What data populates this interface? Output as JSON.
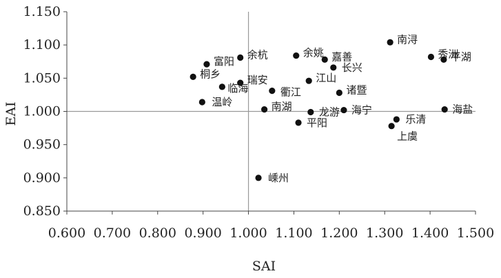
{
  "chart_data": {
    "type": "scatter",
    "xlabel": "SAI",
    "ylabel": "EAI",
    "xlim": [
      0.6,
      1.5
    ],
    "ylim": [
      0.85,
      1.15
    ],
    "xticks": [
      "0.600",
      "0.700",
      "0.800",
      "0.900",
      "1.000",
      "1.100",
      "1.200",
      "1.300",
      "1.400",
      "1.500"
    ],
    "yticks": [
      "0.850",
      "0.900",
      "0.950",
      "1.000",
      "1.050",
      "1.100",
      "1.150"
    ],
    "reference_lines": {
      "x": 1.0,
      "y": 1.0
    },
    "points": [
      {
        "name": "南浔",
        "x": 1.312,
        "y": 1.104
      },
      {
        "name": "秀洲",
        "x": 1.402,
        "y": 1.082
      },
      {
        "name": "平湖",
        "x": 1.43,
        "y": 1.078
      },
      {
        "name": "余杭",
        "x": 0.982,
        "y": 1.081
      },
      {
        "name": "余姚",
        "x": 1.105,
        "y": 1.084
      },
      {
        "name": "嘉善",
        "x": 1.168,
        "y": 1.078
      },
      {
        "name": "长兴",
        "x": 1.187,
        "y": 1.066
      },
      {
        "name": "富阳",
        "x": 0.908,
        "y": 1.071
      },
      {
        "name": "桐乡",
        "x": 0.878,
        "y": 1.052
      },
      {
        "name": "瑞安",
        "x": 0.982,
        "y": 1.043
      },
      {
        "name": "临海",
        "x": 0.942,
        "y": 1.037
      },
      {
        "name": "衢江",
        "x": 1.052,
        "y": 1.031
      },
      {
        "name": "江山",
        "x": 1.133,
        "y": 1.046
      },
      {
        "name": "诸暨",
        "x": 1.2,
        "y": 1.028
      },
      {
        "name": "温岭",
        "x": 0.898,
        "y": 1.014
      },
      {
        "name": "南湖",
        "x": 1.035,
        "y": 1.003
      },
      {
        "name": "龙游",
        "x": 1.137,
        "y": 0.999
      },
      {
        "name": "海宁",
        "x": 1.21,
        "y": 1.002
      },
      {
        "name": "海盐",
        "x": 1.432,
        "y": 1.003
      },
      {
        "name": "平阳",
        "x": 1.11,
        "y": 0.983
      },
      {
        "name": "乐清",
        "x": 1.326,
        "y": 0.988
      },
      {
        "name": "上虞",
        "x": 1.315,
        "y": 0.978
      },
      {
        "name": "嵊州",
        "x": 1.022,
        "y": 0.9
      }
    ]
  }
}
